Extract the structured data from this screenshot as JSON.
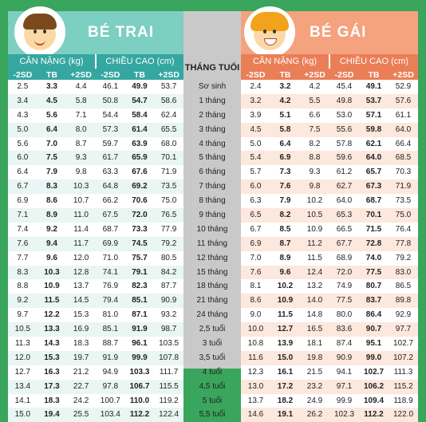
{
  "boy": {
    "title": "BÉ TRAI",
    "weight_header": "CÂN NẶNG (kg)",
    "height_header": "CHIỀU CAO (cm)"
  },
  "girl": {
    "title": "BÉ GÁI",
    "weight_header": "CÂN NẶNG (kg)",
    "height_header": "CHIỀU CAO (cm)"
  },
  "middle_header": "THÁNG TUỔI",
  "sub_labels": [
    "-2SD",
    "TB",
    "+2SD"
  ],
  "colors": {
    "boy_accent": "#35a7a0",
    "girl_accent": "#ea7e57",
    "background": "#3aa55c"
  },
  "rows": [
    {
      "age": "Sơ sinh",
      "b": [
        "2.5",
        "3.3",
        "4.4",
        "46.1",
        "49.9",
        "53.7"
      ],
      "g": [
        "2.4",
        "3.2",
        "4.2",
        "45.4",
        "49.1",
        "52.9"
      ]
    },
    {
      "age": "1 tháng",
      "b": [
        "3.4",
        "4.5",
        "5.8",
        "50.8",
        "54.7",
        "58.6"
      ],
      "g": [
        "3.2",
        "4.2",
        "5.5",
        "49.8",
        "53.7",
        "57.6"
      ]
    },
    {
      "age": "2 tháng",
      "b": [
        "4.3",
        "5.6",
        "7.1",
        "54.4",
        "58.4",
        "62.4"
      ],
      "g": [
        "3.9",
        "5.1",
        "6.6",
        "53.0",
        "57.1",
        "61.1"
      ]
    },
    {
      "age": "3 tháng",
      "b": [
        "5.0",
        "6.4",
        "8.0",
        "57.3",
        "61.4",
        "65.5"
      ],
      "g": [
        "4.5",
        "5.8",
        "7.5",
        "55.6",
        "59.8",
        "64.0"
      ]
    },
    {
      "age": "4 tháng",
      "b": [
        "5.6",
        "7.0",
        "8.7",
        "59.7",
        "63.9",
        "68.0"
      ],
      "g": [
        "5.0",
        "6.4",
        "8.2",
        "57.8",
        "62.1",
        "66.4"
      ]
    },
    {
      "age": "5 tháng",
      "b": [
        "6.0",
        "7.5",
        "9.3",
        "61.7",
        "65.9",
        "70.1"
      ],
      "g": [
        "5.4",
        "6.9",
        "8.8",
        "59.6",
        "64.0",
        "68.5"
      ]
    },
    {
      "age": "6 tháng",
      "b": [
        "6.4",
        "7.9",
        "9.8",
        "63.3",
        "67.6",
        "71.9"
      ],
      "g": [
        "5.7",
        "7.3",
        "9.3",
        "61.2",
        "65.7",
        "70.3"
      ]
    },
    {
      "age": "7 tháng",
      "b": [
        "6.7",
        "8.3",
        "10.3",
        "64.8",
        "69.2",
        "73.5"
      ],
      "g": [
        "6.0",
        "7.6",
        "9.8",
        "62.7",
        "67.3",
        "71.9"
      ]
    },
    {
      "age": "8 tháng",
      "b": [
        "6.9",
        "8.6",
        "10.7",
        "66.2",
        "70.6",
        "75.0"
      ],
      "g": [
        "6.3",
        "7.9",
        "10.2",
        "64.0",
        "68.7",
        "73.5"
      ]
    },
    {
      "age": "9 tháng",
      "b": [
        "7.1",
        "8.9",
        "11.0",
        "67.5",
        "72.0",
        "76.5"
      ],
      "g": [
        "6.5",
        "8.2",
        "10.5",
        "65.3",
        "70.1",
        "75.0"
      ]
    },
    {
      "age": "10 tháng",
      "b": [
        "7.4",
        "9.2",
        "11.4",
        "68.7",
        "73.3",
        "77.9"
      ],
      "g": [
        "6.7",
        "8.5",
        "10.9",
        "66.5",
        "71.5",
        "76.4"
      ]
    },
    {
      "age": "11 tháng",
      "b": [
        "7.6",
        "9.4",
        "11.7",
        "69.9",
        "74.5",
        "79.2"
      ],
      "g": [
        "6.9",
        "8.7",
        "11.2",
        "67.7",
        "72.8",
        "77.8"
      ]
    },
    {
      "age": "12 tháng",
      "b": [
        "7.7",
        "9.6",
        "12.0",
        "71.0",
        "75.7",
        "80.5"
      ],
      "g": [
        "7.0",
        "8.9",
        "11.5",
        "68.9",
        "74.0",
        "79.2"
      ]
    },
    {
      "age": "15 tháng",
      "b": [
        "8.3",
        "10.3",
        "12.8",
        "74.1",
        "79.1",
        "84.2"
      ],
      "g": [
        "7.6",
        "9.6",
        "12.4",
        "72.0",
        "77.5",
        "83.0"
      ]
    },
    {
      "age": "18 tháng",
      "b": [
        "8.8",
        "10.9",
        "13.7",
        "76.9",
        "82.3",
        "87.7"
      ],
      "g": [
        "8.1",
        "10.2",
        "13.2",
        "74.9",
        "80.7",
        "86.5"
      ]
    },
    {
      "age": "21 tháng",
      "b": [
        "9.2",
        "11.5",
        "14.5",
        "79.4",
        "85.1",
        "90.9"
      ],
      "g": [
        "8.6",
        "10.9",
        "14.0",
        "77.5",
        "83.7",
        "89.8"
      ]
    },
    {
      "age": "24 tháng",
      "b": [
        "9.7",
        "12.2",
        "15.3",
        "81.0",
        "87.1",
        "93.2"
      ],
      "g": [
        "9.0",
        "11.5",
        "14.8",
        "80.0",
        "86.4",
        "92.9"
      ]
    },
    {
      "age": "2,5 tuổi",
      "b": [
        "10.5",
        "13.3",
        "16.9",
        "85.1",
        "91.9",
        "98.7"
      ],
      "g": [
        "10.0",
        "12.7",
        "16.5",
        "83.6",
        "90.7",
        "97.7"
      ]
    },
    {
      "age": "3 tuổi",
      "b": [
        "11.3",
        "14.3",
        "18.3",
        "88.7",
        "96.1",
        "103.5"
      ],
      "g": [
        "10.8",
        "13.9",
        "18.1",
        "87.4",
        "95.1",
        "102.7"
      ]
    },
    {
      "age": "3,5 tuổi",
      "b": [
        "12.0",
        "15.3",
        "19.7",
        "91.9",
        "99.9",
        "107.8"
      ],
      "g": [
        "11.6",
        "15.0",
        "19.8",
        "90.9",
        "99.0",
        "107.2"
      ]
    },
    {
      "age": "4 tuổi",
      "b": [
        "12.7",
        "16.3",
        "21.2",
        "94.9",
        "103.3",
        "111.7"
      ],
      "g": [
        "12.3",
        "16.1",
        "21.5",
        "94.1",
        "102.7",
        "111.3"
      ]
    },
    {
      "age": "4,5 tuổi",
      "b": [
        "13.4",
        "17.3",
        "22.7",
        "97.8",
        "106.7",
        "115.5"
      ],
      "g": [
        "13.0",
        "17.2",
        "23.2",
        "97.1",
        "106.2",
        "115.2"
      ]
    },
    {
      "age": "5 tuổi",
      "b": [
        "14.1",
        "18.3",
        "24.2",
        "100.7",
        "110.0",
        "119.2"
      ],
      "g": [
        "13.7",
        "18.2",
        "24.9",
        "99.9",
        "109.4",
        "118.9"
      ]
    },
    {
      "age": "5,5 tuổi",
      "b": [
        "15.0",
        "19.4",
        "25.5",
        "103.4",
        "112.2",
        "122.4"
      ],
      "g": [
        "14.6",
        "19.1",
        "26.2",
        "102.3",
        "112.2",
        "122.0"
      ]
    }
  ]
}
